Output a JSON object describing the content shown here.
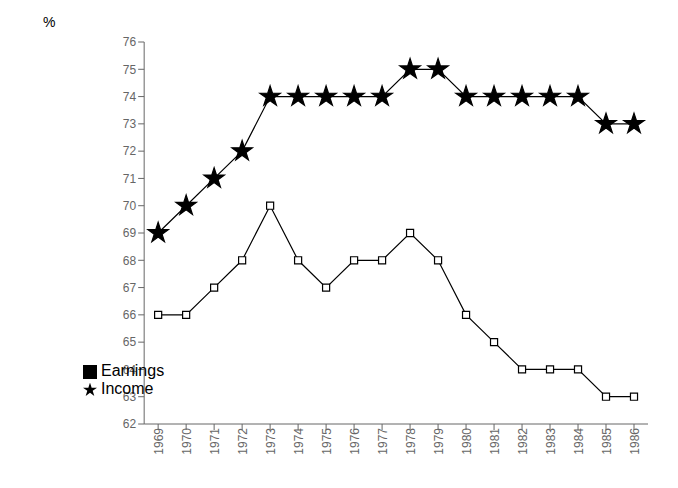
{
  "chart_data": {
    "type": "line",
    "x": [
      1969,
      1970,
      1971,
      1972,
      1973,
      1974,
      1975,
      1976,
      1977,
      1978,
      1979,
      1980,
      1981,
      1982,
      1983,
      1984,
      1985,
      1986
    ],
    "xlim": [
      1968.5,
      1986.5
    ],
    "xticks": [
      1969,
      1970,
      1971,
      1972,
      1973,
      1974,
      1975,
      1976,
      1977,
      1978,
      1979,
      1980,
      1981,
      1982,
      1983,
      1984,
      1985,
      1986
    ],
    "ylabel": "%",
    "ylim": [
      62,
      76
    ],
    "yticks": [
      62,
      63,
      64,
      65,
      66,
      67,
      68,
      69,
      70,
      71,
      72,
      73,
      74,
      75,
      76
    ],
    "series": [
      {
        "name": "Earnings",
        "color": "#000000",
        "marker": "square",
        "values": [
          66,
          66,
          67,
          68,
          70,
          68,
          67,
          68,
          68,
          69,
          68,
          66,
          65,
          64,
          64,
          64,
          63,
          63
        ]
      },
      {
        "name": "Income",
        "color": "#000000",
        "marker": "star",
        "values": [
          69,
          70,
          71,
          72,
          74,
          74,
          74,
          74,
          74,
          75,
          75,
          74,
          74,
          74,
          74,
          74,
          73,
          73
        ]
      }
    ],
    "legend": "lower left",
    "grid": false
  }
}
